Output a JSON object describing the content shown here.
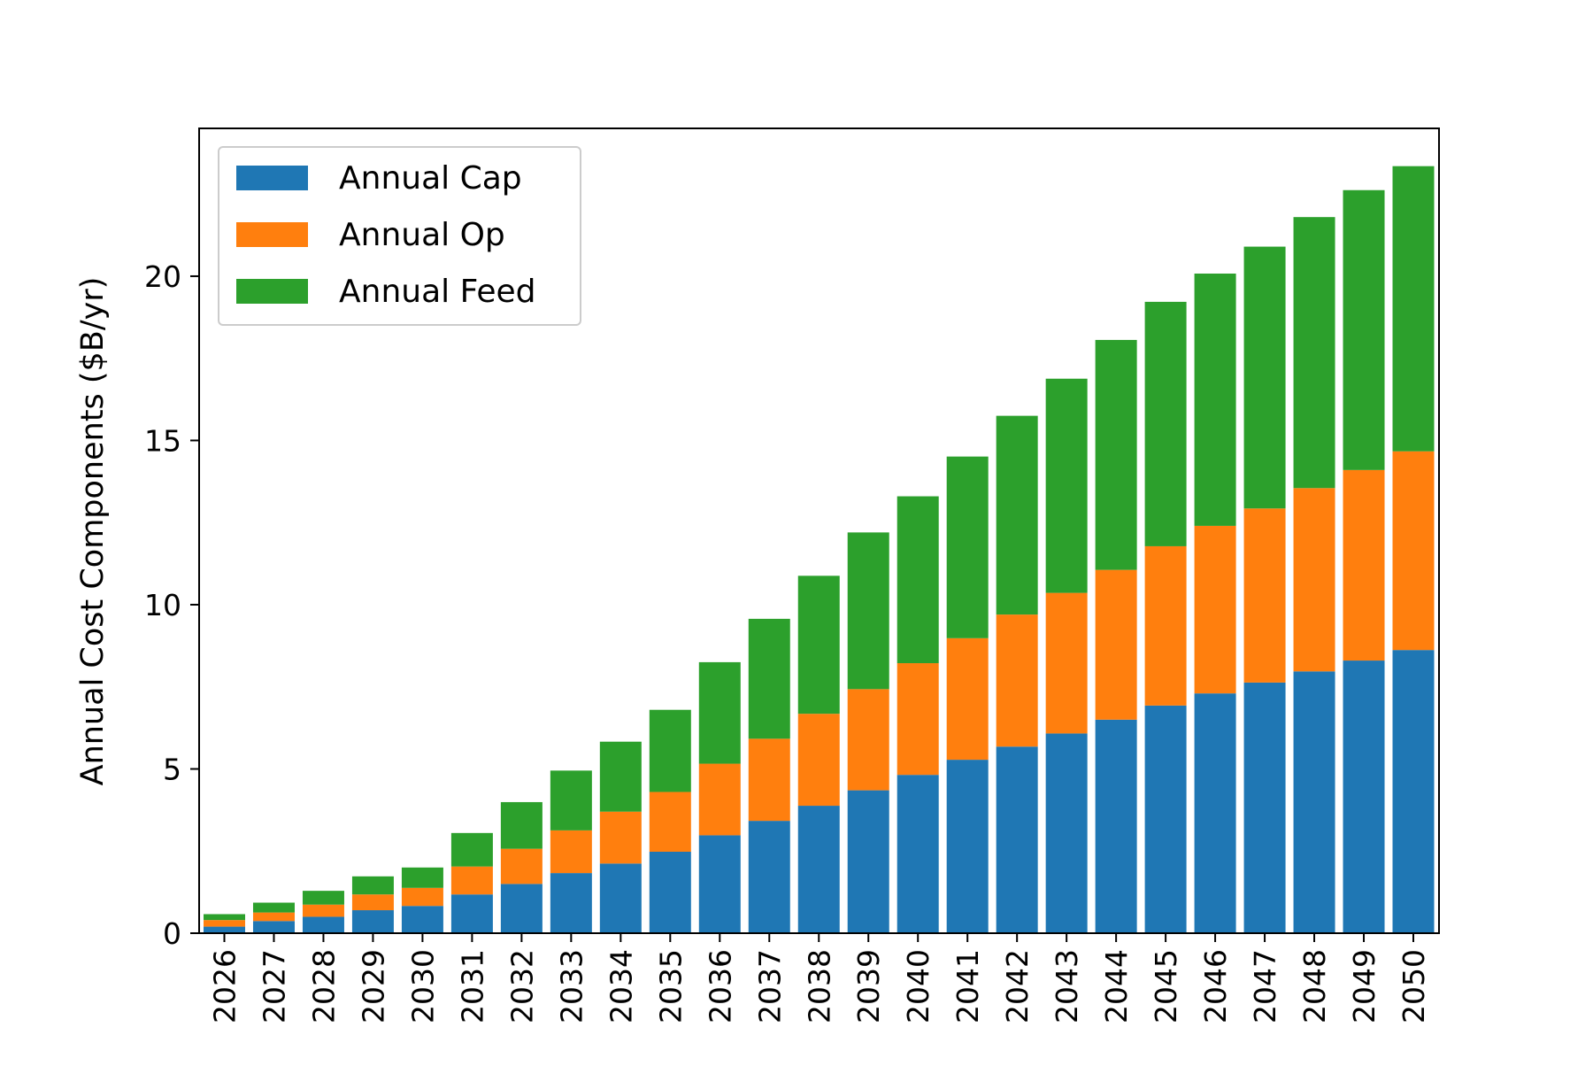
{
  "chart_data": {
    "type": "bar",
    "stacked": true,
    "title": "",
    "xlabel": "",
    "ylabel": "Annual Cost Components ($B/yr)",
    "ylim": [
      0,
      24.5
    ],
    "yticks": [
      0,
      5,
      10,
      15,
      20
    ],
    "grid": false,
    "legend_position": "top-left",
    "categories": [
      "2026",
      "2027",
      "2028",
      "2029",
      "2030",
      "2031",
      "2032",
      "2033",
      "2034",
      "2035",
      "2036",
      "2037",
      "2038",
      "2039",
      "2040",
      "2041",
      "2042",
      "2043",
      "2044",
      "2045",
      "2046",
      "2047",
      "2048",
      "2049",
      "2050"
    ],
    "series": [
      {
        "name": "Annual Cap",
        "color": "#1f77b4",
        "values": [
          0.2,
          0.37,
          0.5,
          0.7,
          0.83,
          1.18,
          1.5,
          1.83,
          2.12,
          2.48,
          2.98,
          3.42,
          3.88,
          4.35,
          4.82,
          5.28,
          5.68,
          6.08,
          6.5,
          6.93,
          7.3,
          7.63,
          7.97,
          8.3,
          8.62
        ]
      },
      {
        "name": "Annual Op",
        "color": "#ff7f0e",
        "values": [
          0.2,
          0.26,
          0.37,
          0.48,
          0.55,
          0.85,
          1.07,
          1.3,
          1.58,
          1.82,
          2.18,
          2.5,
          2.8,
          3.08,
          3.4,
          3.7,
          4.02,
          4.28,
          4.56,
          4.85,
          5.1,
          5.3,
          5.58,
          5.8,
          6.05
        ]
      },
      {
        "name": "Annual Feed",
        "color": "#2ca02c",
        "values": [
          0.18,
          0.3,
          0.42,
          0.55,
          0.62,
          1.02,
          1.42,
          1.82,
          2.13,
          2.5,
          3.09,
          3.65,
          4.2,
          4.77,
          5.08,
          5.53,
          6.05,
          6.52,
          7.0,
          7.44,
          7.68,
          7.97,
          8.25,
          8.52,
          8.68
        ]
      }
    ]
  }
}
